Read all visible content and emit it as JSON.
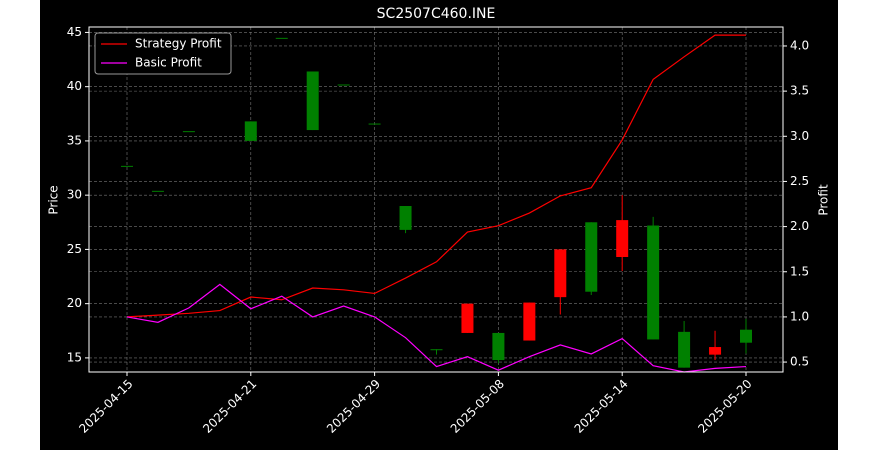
{
  "chart_data": {
    "type": "candlestick",
    "title": "SC2507C460.INE",
    "y_label": "Price",
    "y2_label": "Profit",
    "categories": [
      "2025-04-15",
      null,
      null,
      null,
      "2025-04-21",
      null,
      null,
      null,
      "2025-04-29",
      null,
      null,
      null,
      "2025-05-08",
      null,
      null,
      null,
      "2025-05-14",
      null,
      null,
      null,
      "2025-05-20"
    ],
    "open": [
      32.7,
      30.4,
      35.9,
      null,
      35.0,
      44.5,
      36.0,
      40.2,
      36.6,
      26.8,
      15.8,
      20.0,
      14.8,
      20.1,
      25.0,
      21.1,
      27.7,
      16.7,
      14.1,
      16.0,
      16.4
    ],
    "high": [
      32.7,
      30.4,
      35.9,
      null,
      36.8,
      44.5,
      41.4,
      40.2,
      36.6,
      29.0,
      15.8,
      20.0,
      17.3,
      20.1,
      25.0,
      27.5,
      30.0,
      28.0,
      18.4,
      17.5,
      18.6
    ],
    "low": [
      32.7,
      30.4,
      35.9,
      null,
      35.0,
      44.5,
      36.0,
      40.2,
      36.6,
      26.5,
      15.3,
      17.3,
      14.5,
      16.6,
      19.0,
      20.8,
      23.0,
      16.7,
      14.1,
      14.8,
      15.4
    ],
    "close": [
      32.7,
      30.4,
      35.9,
      null,
      36.8,
      44.5,
      41.4,
      40.2,
      36.6,
      29.0,
      15.8,
      17.3,
      17.3,
      16.6,
      20.6,
      27.5,
      24.3,
      27.2,
      17.4,
      15.3,
      17.6
    ],
    "up_color": "#008000",
    "down_color": "#ff0000",
    "series": [
      {
        "name": "Strategy Profit",
        "color": "#ff0000",
        "axis": "y2",
        "values": [
          1.0,
          1.02,
          1.04,
          1.07,
          1.22,
          1.19,
          1.32,
          1.3,
          1.26,
          1.43,
          1.61,
          1.94,
          2.01,
          2.15,
          2.34,
          2.43,
          2.96,
          3.63,
          3.88,
          4.12,
          4.12
        ]
      },
      {
        "name": "Basic Profit",
        "color": "#ff00ff",
        "axis": "y2",
        "values": [
          1.0,
          0.94,
          1.1,
          1.36,
          1.09,
          1.23,
          1.0,
          1.12,
          1.0,
          0.77,
          0.45,
          0.56,
          0.41,
          0.56,
          0.69,
          0.59,
          0.76,
          0.46,
          0.39,
          0.43,
          0.45
        ]
      }
    ],
    "ylim": [
      13.7,
      45.5
    ],
    "yticks": [
      15,
      20,
      25,
      30,
      35,
      40,
      45
    ],
    "y2lim": [
      0.39,
      4.21
    ],
    "y2ticks": [
      0.5,
      {
        "value": 1,
        "label": "1.0"
      },
      1.5,
      {
        "value": 2,
        "label": "2.0"
      },
      2.5,
      {
        "value": 3,
        "label": "3.0"
      },
      3.5,
      {
        "value": 4,
        "label": "4.0"
      }
    ],
    "grid": true,
    "legend": "upper left"
  }
}
